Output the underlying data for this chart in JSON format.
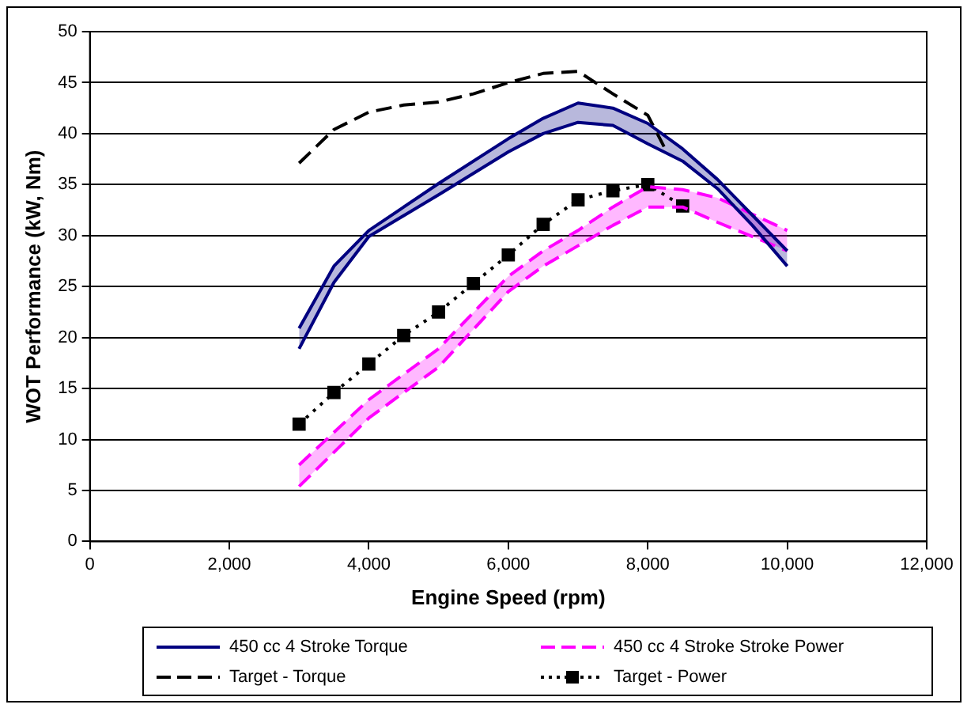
{
  "chart_data": {
    "type": "line",
    "xlabel": "Engine Speed (rpm)",
    "ylabel": "WOT Performance (kW, Nm)",
    "xlim": [
      0,
      12000
    ],
    "xticks": [
      {
        "value": 0,
        "label": "0"
      },
      {
        "value": 2000,
        "label": "2,000"
      },
      {
        "value": 4000,
        "label": "4,000"
      },
      {
        "value": 6000,
        "label": "6,000"
      },
      {
        "value": 8000,
        "label": "8,000"
      },
      {
        "value": 10000,
        "label": "10,000"
      },
      {
        "value": 12000,
        "label": "12,000"
      }
    ],
    "ylim": [
      0,
      50
    ],
    "yticks": [
      0,
      5,
      10,
      15,
      20,
      25,
      30,
      35,
      40,
      45,
      50
    ],
    "grid": "y",
    "legend": "bottom",
    "series": [
      {
        "name": "450 cc 4 Stroke Torque",
        "color": "#000080",
        "line_style": "solid",
        "marker": "none",
        "x": [
          3000,
          3500,
          4000,
          5000,
          6000,
          6500,
          7000,
          7500,
          8000,
          8500,
          9000,
          9500,
          10000
        ],
        "values": [
          20.9,
          27.0,
          30.5,
          35.1,
          39.5,
          41.5,
          43.0,
          42.5,
          41.0,
          38.5,
          35.5,
          32.0,
          28.5
        ],
        "lower": [
          18.9,
          25.4,
          29.9,
          34.0,
          38.2,
          40.0,
          41.1,
          40.8,
          39.0,
          37.3,
          34.6,
          31.0,
          27.0
        ],
        "upper": [
          20.9,
          27.0,
          30.5,
          35.1,
          39.5,
          41.5,
          43.0,
          42.5,
          41.0,
          38.5,
          35.5,
          32.0,
          28.5
        ]
      },
      {
        "color": "#000080",
        "line_style": "solid",
        "marker": "none",
        "x": [
          3000,
          3500,
          4000,
          5000,
          6000,
          6500,
          7000,
          7500,
          8000,
          8500,
          9000,
          9500,
          10000
        ],
        "values": [
          18.9,
          25.4,
          29.9,
          34.0,
          38.2,
          40.0,
          41.1,
          40.8,
          39.0,
          37.3,
          34.6,
          31.0,
          27.0
        ]
      },
      {
        "name": "450 cc 4 Stroke Stroke Power",
        "color": "#ff00ff",
        "line_style": "dashed",
        "marker": "none",
        "x": [
          3000,
          4000,
          5000,
          6000,
          6500,
          7000,
          7500,
          8000,
          8500,
          9000,
          10000
        ],
        "values": [
          7.5,
          13.9,
          18.9,
          26.0,
          28.5,
          30.5,
          32.8,
          34.8,
          34.5,
          33.7,
          30.5
        ],
        "lower": [
          5.4,
          12.1,
          17.1,
          24.5,
          27.0,
          29.0,
          31.0,
          32.8,
          32.8,
          31.3,
          28.5
        ],
        "upper": [
          7.5,
          13.9,
          18.9,
          26.0,
          28.5,
          30.5,
          32.8,
          34.8,
          34.5,
          33.7,
          30.5
        ]
      },
      {
        "color": "#ff00ff",
        "line_style": "dashed",
        "marker": "none",
        "x": [
          3000,
          4000,
          5000,
          6000,
          6500,
          7000,
          7500,
          8000,
          8500,
          9000,
          10000
        ],
        "values": [
          5.4,
          12.1,
          17.1,
          24.5,
          27.0,
          29.0,
          31.0,
          32.8,
          32.8,
          31.3,
          28.5
        ]
      },
      {
        "name": "Target - Torque",
        "color": "#000000",
        "line_style": "dashed",
        "marker": "none",
        "x": [
          3000,
          3500,
          4000,
          4500,
          5000,
          5500,
          6000,
          6500,
          7000,
          7500,
          8000,
          8250
        ],
        "values": [
          37.1,
          40.4,
          42.1,
          42.8,
          43.1,
          43.9,
          45.0,
          45.9,
          46.1,
          43.9,
          41.8,
          38.5
        ]
      },
      {
        "name": "Target - Power",
        "color": "#000000",
        "line_style": "dotted",
        "marker": "square",
        "x": [
          3000,
          3500,
          4000,
          4500,
          5000,
          5500,
          6000,
          6500,
          7000,
          7500,
          8000,
          8500
        ],
        "values": [
          11.5,
          14.6,
          17.4,
          20.2,
          22.5,
          25.3,
          28.1,
          31.1,
          33.5,
          34.4,
          35.0,
          32.9
        ]
      }
    ]
  }
}
